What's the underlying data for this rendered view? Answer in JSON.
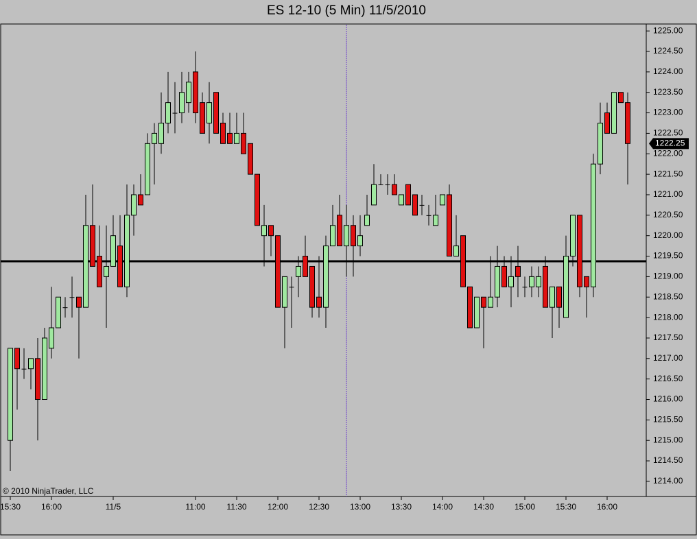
{
  "chart_data": {
    "type": "candlestick",
    "title": "ES 12-10 (5 Min)  11/5/2010",
    "watermark": "© 2010 NinjaTrader, LLC",
    "categories": [
      "15:30",
      null,
      null,
      null,
      null,
      null,
      "16:00",
      null,
      null,
      null,
      null,
      null,
      null,
      null,
      null,
      "11/5",
      null,
      null,
      null,
      null,
      null,
      null,
      null,
      null,
      null,
      null,
      null,
      "11:00",
      null,
      null,
      null,
      null,
      null,
      "11:30",
      null,
      null,
      null,
      null,
      null,
      "12:00",
      null,
      null,
      null,
      null,
      null,
      "12:30",
      null,
      null,
      null,
      null,
      null,
      "13:00",
      null,
      null,
      null,
      null,
      null,
      "13:30",
      null,
      null,
      null,
      null,
      null,
      "14:00",
      null,
      null,
      null,
      null,
      null,
      "14:30",
      null,
      null,
      null,
      null,
      null,
      "15:00",
      null,
      null,
      null,
      null,
      null,
      "15:30",
      null,
      null,
      null,
      null,
      null,
      "16:00",
      null,
      null,
      null
    ],
    "open": [
      1215.0,
      1217.25,
      1216.75,
      1216.75,
      1217.0,
      1216.0,
      1217.25,
      1217.75,
      1218.25,
      1218.5,
      1218.5,
      1218.25,
      1220.25,
      1219.5,
      1219.0,
      1219.25,
      1219.75,
      1218.75,
      1220.5,
      1221.0,
      1221.0,
      1222.25,
      1222.25,
      1222.75,
      1223.0,
      1223.0,
      1223.25,
      1224.0,
      1223.25,
      1222.75,
      1223.5,
      1222.75,
      1222.5,
      1222.25,
      1222.5,
      1222.25,
      1221.5,
      1220.0,
      1220.25,
      1220.0,
      1218.25,
      1218.75,
      1219.0,
      1219.5,
      1219.25,
      1218.5,
      1218.25,
      1219.75,
      1220.5,
      1219.75,
      1220.25,
      1219.75,
      1220.25,
      1220.75,
      1221.25,
      1221.25,
      1221.25,
      1220.75,
      1221.25,
      1221.0,
      1220.75,
      1220.5,
      1220.25,
      1220.75,
      1221.0,
      1219.5,
      1220.0,
      1218.75,
      1217.75,
      1218.5,
      1218.25,
      1218.5,
      1219.25,
      1218.75,
      1219.25,
      1218.75,
      1218.75,
      1218.75,
      1219.25,
      1218.25,
      1218.75,
      1218.0,
      1219.5,
      1220.5,
      1219.0,
      1218.75,
      1221.75,
      1223.0,
      1222.5,
      1223.5,
      1223.25
    ],
    "high": [
      1217.25,
      1217.25,
      1217.25,
      1217.0,
      1217.5,
      1217.75,
      1218.75,
      1218.5,
      1218.5,
      1219.0,
      1218.5,
      1221.0,
      1221.25,
      1220.25,
      1220.25,
      1220.5,
      1220.5,
      1221.25,
      1221.25,
      1221.5,
      1222.5,
      1222.75,
      1223.5,
      1224.0,
      1223.75,
      1224.0,
      1224.0,
      1224.5,
      1223.5,
      1223.75,
      1223.5,
      1223.0,
      1223.0,
      1223.0,
      1223.0,
      1222.25,
      1221.5,
      1220.75,
      1220.25,
      1220.0,
      1219.0,
      1219.0,
      1219.5,
      1220.0,
      1219.25,
      1219.5,
      1220.0,
      1220.75,
      1221.0,
      1220.75,
      1220.5,
      1220.5,
      1221.0,
      1221.75,
      1221.5,
      1221.5,
      1221.5,
      1221.0,
      1221.25,
      1221.0,
      1221.0,
      1220.75,
      1221.0,
      1221.0,
      1221.25,
      1220.5,
      1220.0,
      1218.75,
      1218.5,
      1218.5,
      1219.5,
      1219.75,
      1219.5,
      1219.5,
      1219.75,
      1219.0,
      1219.25,
      1219.25,
      1219.5,
      1218.75,
      1218.75,
      1220.0,
      1220.5,
      1220.5,
      1219.0,
      1222.0,
      1223.25,
      1223.25,
      1223.5,
      1223.5,
      1223.5
    ],
    "low": [
      1214.25,
      1215.75,
      1216.5,
      1216.25,
      1215.0,
      1216.0,
      1217.0,
      1217.75,
      1218.0,
      1218.0,
      1217.0,
      1218.25,
      1219.25,
      1218.75,
      1217.75,
      1219.25,
      1218.75,
      1218.5,
      1220.0,
      1220.75,
      1221.0,
      1221.25,
      1222.0,
      1222.5,
      1222.5,
      1222.75,
      1223.0,
      1222.75,
      1222.5,
      1222.25,
      1222.5,
      1222.25,
      1222.25,
      1222.25,
      1222.0,
      1221.5,
      1220.25,
      1219.25,
      1219.5,
      1218.25,
      1217.25,
      1217.75,
      1218.5,
      1219.0,
      1218.0,
      1218.0,
      1217.75,
      1219.75,
      1219.75,
      1219.0,
      1219.0,
      1219.5,
      1220.25,
      1220.75,
      1221.25,
      1221.0,
      1221.0,
      1220.75,
      1220.75,
      1220.5,
      1220.5,
      1220.25,
      1220.25,
      1220.75,
      1219.5,
      1219.5,
      1218.75,
      1217.75,
      1217.75,
      1217.25,
      1218.25,
      1218.25,
      1218.75,
      1218.25,
      1218.5,
      1218.5,
      1218.5,
      1218.5,
      1218.25,
      1217.5,
      1217.75,
      1218.0,
      1219.25,
      1218.5,
      1218.0,
      1218.5,
      1221.5,
      1222.5,
      1222.5,
      1223.25,
      1221.25
    ],
    "close": [
      1217.25,
      1216.75,
      1216.75,
      1217.0,
      1216.0,
      1217.5,
      1217.75,
      1218.5,
      1218.25,
      1218.5,
      1218.25,
      1220.25,
      1219.25,
      1218.75,
      1219.25,
      1220.0,
      1218.75,
      1220.5,
      1221.0,
      1220.75,
      1222.25,
      1222.5,
      1222.75,
      1223.25,
      1223.0,
      1223.5,
      1223.75,
      1223.0,
      1222.5,
      1223.25,
      1222.5,
      1222.25,
      1222.25,
      1222.5,
      1222.0,
      1221.5,
      1220.25,
      1220.25,
      1220.0,
      1218.25,
      1219.0,
      1218.75,
      1219.25,
      1219.0,
      1218.25,
      1218.25,
      1219.75,
      1220.25,
      1219.75,
      1220.25,
      1219.75,
      1220.0,
      1220.5,
      1221.25,
      1221.25,
      1221.25,
      1221.0,
      1221.0,
      1220.75,
      1220.5,
      1220.75,
      1220.5,
      1220.5,
      1221.0,
      1219.5,
      1219.75,
      1218.75,
      1217.75,
      1218.5,
      1218.25,
      1218.5,
      1219.25,
      1218.75,
      1219.0,
      1219.0,
      1218.75,
      1219.0,
      1219.0,
      1218.25,
      1218.75,
      1218.25,
      1219.5,
      1220.5,
      1218.75,
      1218.75,
      1221.75,
      1222.75,
      1222.5,
      1223.5,
      1223.25,
      1222.25
    ],
    "up_color": "#a0e8a0",
    "down_color": "#e01010",
    "hline": 1219.375,
    "last_price": 1222.25,
    "ylim": [
      1213.63,
      1225.17
    ],
    "yticks": [
      {
        "value": 1214,
        "label": "1214.00"
      },
      {
        "value": 1214.5,
        "label": "1214.50"
      },
      {
        "value": 1215,
        "label": "1215.00"
      },
      {
        "value": 1215.5,
        "label": "1215.50"
      },
      {
        "value": 1216,
        "label": "1216.00"
      },
      {
        "value": 1216.5,
        "label": "1216.50"
      },
      {
        "value": 1217,
        "label": "1217.00"
      },
      {
        "value": 1217.5,
        "label": "1217.50"
      },
      {
        "value": 1218,
        "label": "1218.00"
      },
      {
        "value": 1218.5,
        "label": "1218.50"
      },
      {
        "value": 1219,
        "label": "1219.00"
      },
      {
        "value": 1219.5,
        "label": "1219.50"
      },
      {
        "value": 1220,
        "label": "1220.00"
      },
      {
        "value": 1220.5,
        "label": "1220.50"
      },
      {
        "value": 1221,
        "label": "1221.00"
      },
      {
        "value": 1221.5,
        "label": "1221.50"
      },
      {
        "value": 1222,
        "label": "1222.00"
      },
      {
        "value": 1222.5,
        "label": "1222.50"
      },
      {
        "value": 1223,
        "label": "1223.00"
      },
      {
        "value": 1223.5,
        "label": "1223.50"
      },
      {
        "value": 1224,
        "label": "1224.00"
      },
      {
        "value": 1224.5,
        "label": "1224.50"
      },
      {
        "value": 1225,
        "label": "1225.00"
      }
    ]
  }
}
